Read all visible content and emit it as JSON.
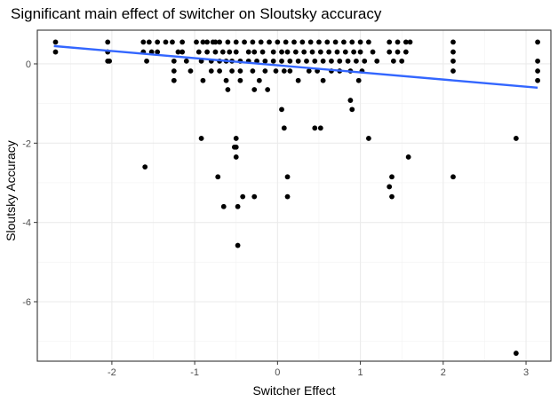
{
  "chart_data": {
    "type": "scatter",
    "title": "Significant main effect of switcher on Sloutsky accuracy",
    "xlabel": "Switcher Effect",
    "ylabel": "Sloutsky Accuracy",
    "xlim": [
      -2.9,
      3.3
    ],
    "ylim": [
      -7.5,
      0.85
    ],
    "xticks": [
      -2,
      -1,
      0,
      1,
      2,
      3
    ],
    "xtick_labels": [
      "-2",
      "-1",
      "0",
      "1",
      "2",
      "3"
    ],
    "yticks": [
      0,
      -2,
      -4,
      -6
    ],
    "ytick_labels": [
      "0",
      "-2",
      "-4",
      "-6"
    ],
    "grid": true,
    "legend": "none",
    "colors": {
      "points": "#000000",
      "fit_line": "#3366ff",
      "grid": "#ebebeb",
      "border": "#333333"
    },
    "series": [
      {
        "type": "scatter",
        "points": [
          [
            -2.68,
            0.55
          ],
          [
            -2.68,
            0.3
          ],
          [
            -2.05,
            0.55
          ],
          [
            -2.05,
            0.3
          ],
          [
            -2.05,
            0.07
          ],
          [
            -2.03,
            0.07
          ],
          [
            -1.62,
            0.55
          ],
          [
            -1.62,
            0.3
          ],
          [
            -1.58,
            0.07
          ],
          [
            -1.55,
            0.55
          ],
          [
            -1.52,
            0.3
          ],
          [
            -1.45,
            0.55
          ],
          [
            -1.45,
            0.3
          ],
          [
            -1.35,
            0.55
          ],
          [
            -1.27,
            0.55
          ],
          [
            -1.2,
            0.3
          ],
          [
            -1.25,
            0.07
          ],
          [
            -1.25,
            -0.18
          ],
          [
            -1.25,
            -0.42
          ],
          [
            -1.15,
            0.55
          ],
          [
            -1.15,
            0.3
          ],
          [
            -1.1,
            0.07
          ],
          [
            -1.05,
            -0.18
          ],
          [
            -0.98,
            0.55
          ],
          [
            -0.95,
            0.3
          ],
          [
            -0.92,
            0.07
          ],
          [
            -0.9,
            -0.42
          ],
          [
            -0.9,
            0.55
          ],
          [
            -0.85,
            0.55
          ],
          [
            -0.85,
            0.3
          ],
          [
            -0.8,
            0.07
          ],
          [
            -0.8,
            -0.18
          ],
          [
            -0.78,
            0.55
          ],
          [
            -0.75,
            0.55
          ],
          [
            -0.75,
            0.3
          ],
          [
            -0.7,
            0.07
          ],
          [
            -0.7,
            -0.18
          ],
          [
            -0.7,
            0.55
          ],
          [
            -0.66,
            0.3
          ],
          [
            -0.62,
            0.07
          ],
          [
            -0.62,
            -0.42
          ],
          [
            -0.6,
            0.55
          ],
          [
            -0.58,
            0.3
          ],
          [
            -0.55,
            0.07
          ],
          [
            -0.55,
            -0.18
          ],
          [
            -0.5,
            0.55
          ],
          [
            -0.5,
            0.3
          ],
          [
            -0.45,
            0.07
          ],
          [
            -0.45,
            -0.18
          ],
          [
            -0.45,
            -0.42
          ],
          [
            -0.4,
            0.55
          ],
          [
            -0.35,
            0.3
          ],
          [
            -0.35,
            0.07
          ],
          [
            -0.3,
            -0.18
          ],
          [
            -0.3,
            0.55
          ],
          [
            -0.28,
            0.3
          ],
          [
            -0.25,
            0.07
          ],
          [
            -0.22,
            -0.42
          ],
          [
            -0.2,
            0.55
          ],
          [
            -0.18,
            0.3
          ],
          [
            -0.15,
            0.07
          ],
          [
            -0.15,
            -0.18
          ],
          [
            -0.1,
            0.55
          ],
          [
            -0.05,
            0.3
          ],
          [
            -0.05,
            0.07
          ],
          [
            -0.02,
            -0.18
          ],
          [
            0.0,
            0.55
          ],
          [
            0.05,
            0.3
          ],
          [
            0.05,
            0.07
          ],
          [
            0.08,
            -0.18
          ],
          [
            0.1,
            0.55
          ],
          [
            0.12,
            0.3
          ],
          [
            0.15,
            0.07
          ],
          [
            0.15,
            -0.18
          ],
          [
            0.2,
            0.55
          ],
          [
            0.22,
            0.3
          ],
          [
            0.25,
            0.07
          ],
          [
            0.25,
            -0.42
          ],
          [
            0.3,
            0.55
          ],
          [
            0.32,
            0.3
          ],
          [
            0.35,
            0.07
          ],
          [
            0.38,
            -0.18
          ],
          [
            0.4,
            0.55
          ],
          [
            0.42,
            0.3
          ],
          [
            0.45,
            0.07
          ],
          [
            0.48,
            -0.18
          ],
          [
            0.5,
            0.55
          ],
          [
            0.52,
            0.3
          ],
          [
            0.55,
            0.07
          ],
          [
            0.55,
            -0.42
          ],
          [
            0.6,
            0.55
          ],
          [
            0.62,
            0.3
          ],
          [
            0.65,
            0.07
          ],
          [
            0.65,
            -0.18
          ],
          [
            0.7,
            0.55
          ],
          [
            0.72,
            0.3
          ],
          [
            0.75,
            0.07
          ],
          [
            0.75,
            -0.18
          ],
          [
            0.8,
            0.55
          ],
          [
            0.82,
            0.3
          ],
          [
            0.85,
            0.07
          ],
          [
            0.88,
            -0.18
          ],
          [
            0.9,
            0.55
          ],
          [
            0.92,
            0.3
          ],
          [
            0.95,
            0.07
          ],
          [
            0.98,
            -0.42
          ],
          [
            1.0,
            0.55
          ],
          [
            1.0,
            0.3
          ],
          [
            1.05,
            0.07
          ],
          [
            1.02,
            -0.18
          ],
          [
            1.1,
            0.55
          ],
          [
            1.15,
            0.3
          ],
          [
            1.2,
            0.07
          ],
          [
            1.35,
            0.55
          ],
          [
            1.35,
            0.3
          ],
          [
            1.4,
            0.07
          ],
          [
            1.45,
            0.55
          ],
          [
            1.45,
            0.3
          ],
          [
            1.5,
            0.07
          ],
          [
            1.55,
            0.55
          ],
          [
            1.55,
            0.3
          ],
          [
            1.6,
            0.55
          ],
          [
            2.12,
            0.55
          ],
          [
            2.12,
            0.3
          ],
          [
            2.12,
            0.07
          ],
          [
            2.12,
            -0.18
          ],
          [
            3.14,
            0.55
          ],
          [
            3.14,
            0.07
          ],
          [
            3.14,
            -0.18
          ],
          [
            3.14,
            -0.42
          ],
          [
            -1.6,
            -2.6
          ],
          [
            -0.92,
            -1.88
          ],
          [
            -0.72,
            -2.85
          ],
          [
            -0.65,
            -3.6
          ],
          [
            -0.6,
            -0.65
          ],
          [
            -0.5,
            -1.88
          ],
          [
            -0.5,
            -2.1
          ],
          [
            -0.52,
            -2.1
          ],
          [
            -0.5,
            -2.35
          ],
          [
            -0.48,
            -3.6
          ],
          [
            -0.48,
            -4.58
          ],
          [
            -0.42,
            -3.35
          ],
          [
            -0.28,
            -3.35
          ],
          [
            -0.28,
            -0.65
          ],
          [
            -0.12,
            -0.65
          ],
          [
            0.05,
            -1.15
          ],
          [
            0.08,
            -1.62
          ],
          [
            0.12,
            -2.85
          ],
          [
            0.12,
            -3.35
          ],
          [
            0.45,
            -1.62
          ],
          [
            0.52,
            -1.62
          ],
          [
            0.88,
            -0.92
          ],
          [
            0.9,
            -1.15
          ],
          [
            1.1,
            -1.88
          ],
          [
            1.38,
            -2.85
          ],
          [
            1.35,
            -3.1
          ],
          [
            1.38,
            -3.35
          ],
          [
            1.58,
            -2.35
          ],
          [
            2.12,
            -2.85
          ],
          [
            2.88,
            -1.88
          ],
          [
            2.88,
            -7.3
          ]
        ]
      },
      {
        "type": "line",
        "points": [
          [
            -2.7,
            0.45
          ],
          [
            3.14,
            -0.6
          ]
        ]
      }
    ]
  }
}
